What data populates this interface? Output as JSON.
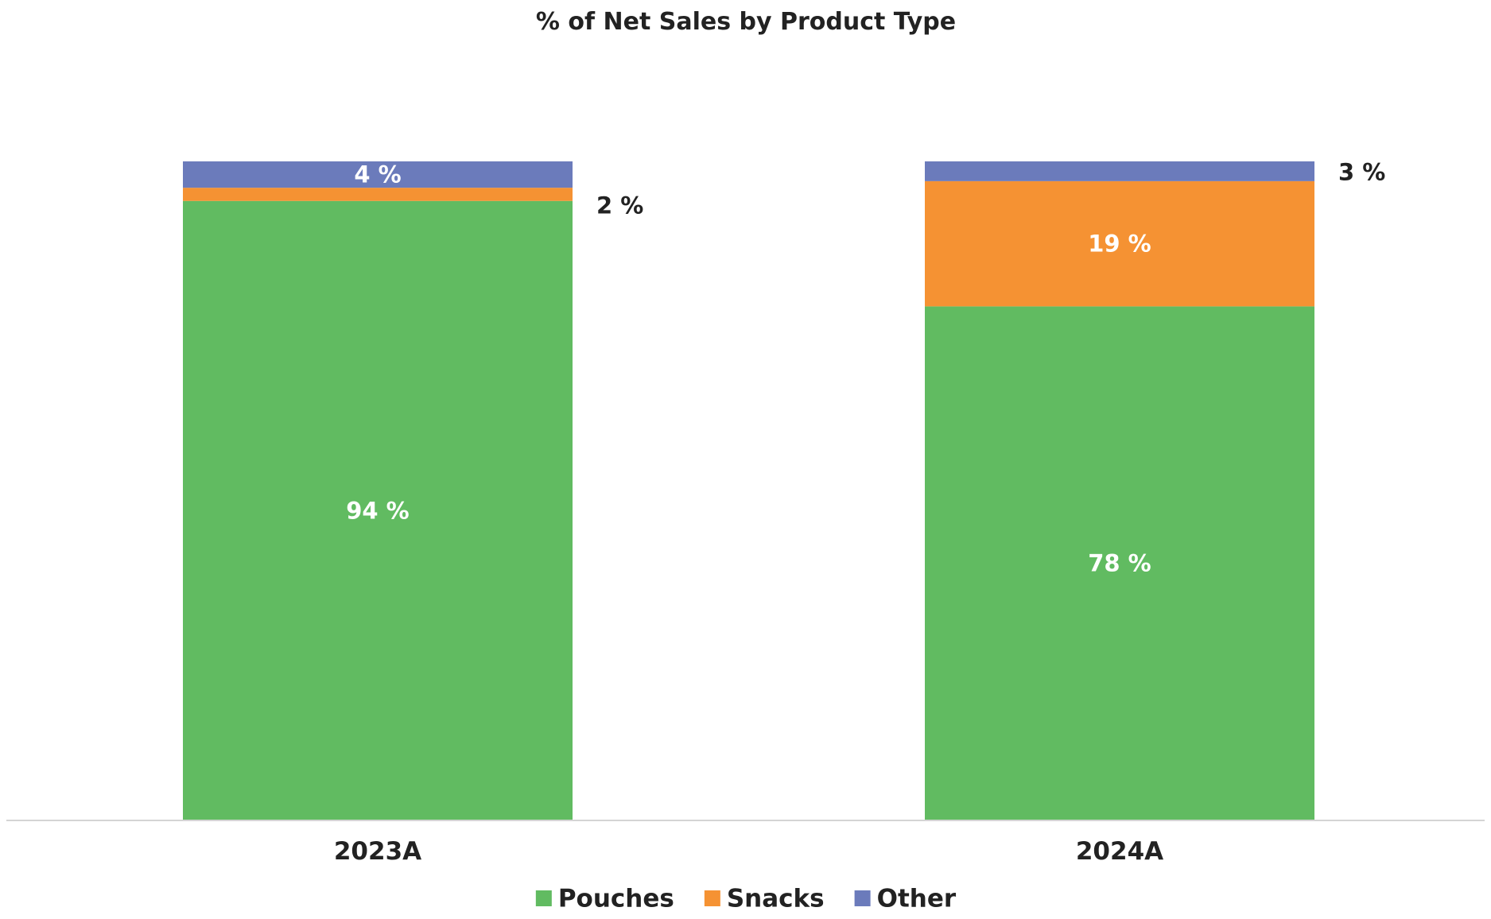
{
  "chart_data": {
    "type": "bar",
    "stacked": true,
    "title": "% of Net Sales by Product Type",
    "xlabel": "",
    "ylabel": "",
    "ylim": [
      0,
      100
    ],
    "categories": [
      "2023A",
      "2024A"
    ],
    "series": [
      {
        "name": "Pouches",
        "values": [
          94,
          78
        ],
        "labels": [
          "94 %",
          "78 %"
        ],
        "color": "#61bb61"
      },
      {
        "name": "Snacks",
        "values": [
          2,
          19
        ],
        "labels": [
          "2 %",
          "19 %"
        ],
        "color": "#f59233"
      },
      {
        "name": "Other",
        "values": [
          4,
          3
        ],
        "labels": [
          "4 %",
          "3 %"
        ],
        "color": "#6b7bbb"
      }
    ],
    "grid": false,
    "legend": "bottom"
  }
}
